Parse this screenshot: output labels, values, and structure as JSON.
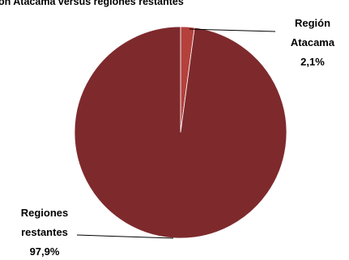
{
  "chart_data": {
    "type": "pie",
    "title": "ón Atacama versus regiones restantes",
    "slices": [
      {
        "name": "Región Atacama",
        "value": 2.1,
        "label_lines": [
          "Región",
          "Atacama"
        ],
        "value_label": "2,1%",
        "color": "#b4413c"
      },
      {
        "name": "Regiones restantes",
        "value": 97.9,
        "label_lines": [
          "Regiones",
          "restantes"
        ],
        "value_label": "97,9%",
        "color": "#7e2a2d"
      }
    ],
    "legend": "none"
  }
}
